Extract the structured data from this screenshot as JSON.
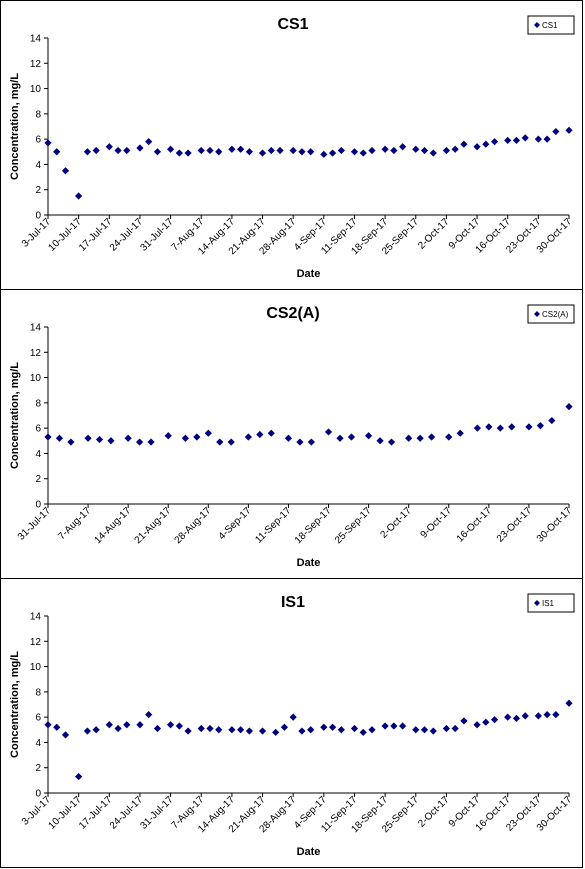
{
  "chart_data": [
    {
      "type": "scatter",
      "title": "CS1",
      "xlabel": "Date",
      "ylabel": "Concentration, mg/L",
      "ylim": [
        0,
        14
      ],
      "yticks": [
        0,
        2,
        4,
        6,
        8,
        10,
        12,
        14
      ],
      "xlim": [
        "2017-07-03",
        "2017-10-30"
      ],
      "xtick_labels": [
        "3-Jul-17",
        "10-Jul-17",
        "17-Jul-17",
        "24-Jul-17",
        "31-Jul-17",
        "7-Aug-17",
        "14-Aug-17",
        "21-Aug-17",
        "28-Aug-17",
        "4-Sep-17",
        "11-Sep-17",
        "18-Sep-17",
        "25-Sep-17",
        "2-Oct-17",
        "9-Oct-17",
        "16-Oct-17",
        "23-Oct-17",
        "30-Oct-17"
      ],
      "legend": {
        "position": "top-right"
      },
      "grid": false,
      "color": "#000080",
      "series": [
        {
          "name": "CS1",
          "x": [
            "2017-07-03",
            "2017-07-05",
            "2017-07-07",
            "2017-07-10",
            "2017-07-12",
            "2017-07-14",
            "2017-07-17",
            "2017-07-19",
            "2017-07-21",
            "2017-07-24",
            "2017-07-26",
            "2017-07-28",
            "2017-07-31",
            "2017-08-02",
            "2017-08-04",
            "2017-08-07",
            "2017-08-09",
            "2017-08-11",
            "2017-08-14",
            "2017-08-16",
            "2017-08-18",
            "2017-08-21",
            "2017-08-23",
            "2017-08-25",
            "2017-08-28",
            "2017-08-30",
            "2017-09-01",
            "2017-09-04",
            "2017-09-06",
            "2017-09-08",
            "2017-09-11",
            "2017-09-13",
            "2017-09-15",
            "2017-09-18",
            "2017-09-20",
            "2017-09-22",
            "2017-09-25",
            "2017-09-27",
            "2017-09-29",
            "2017-10-02",
            "2017-10-04",
            "2017-10-06",
            "2017-10-09",
            "2017-10-11",
            "2017-10-13",
            "2017-10-16",
            "2017-10-18",
            "2017-10-20",
            "2017-10-23",
            "2017-10-25",
            "2017-10-27",
            "2017-10-30"
          ],
          "y": [
            5.7,
            5.0,
            3.5,
            1.5,
            5.0,
            5.1,
            5.4,
            5.1,
            5.1,
            5.3,
            5.8,
            5.0,
            5.2,
            4.9,
            4.9,
            5.1,
            5.1,
            5.0,
            5.2,
            5.2,
            5.0,
            4.9,
            5.1,
            5.1,
            5.1,
            5.0,
            5.0,
            4.8,
            4.9,
            5.1,
            5.0,
            4.9,
            5.1,
            5.2,
            5.1,
            5.4,
            5.2,
            5.1,
            4.9,
            5.1,
            5.2,
            5.6,
            5.4,
            5.6,
            5.8,
            5.9,
            5.9,
            6.1,
            6.0,
            6.0,
            6.6,
            6.7
          ]
        }
      ]
    },
    {
      "type": "scatter",
      "title": "CS2(A)",
      "xlabel": "Date",
      "ylabel": "Concentration, mg/L",
      "ylim": [
        0,
        14
      ],
      "yticks": [
        0,
        2,
        4,
        6,
        8,
        10,
        12,
        14
      ],
      "xlim": [
        "2017-07-31",
        "2017-10-30"
      ],
      "xtick_labels": [
        "31-Jul-17",
        "7-Aug-17",
        "14-Aug-17",
        "21-Aug-17",
        "28-Aug-17",
        "4-Sep-17",
        "11-Sep-17",
        "18-Sep-17",
        "25-Sep-17",
        "2-Oct-17",
        "9-Oct-17",
        "16-Oct-17",
        "23-Oct-17",
        "30-Oct-17"
      ],
      "legend": {
        "position": "top-right"
      },
      "grid": false,
      "color": "#000080",
      "series": [
        {
          "name": "CS2(A)",
          "x": [
            "2017-07-31",
            "2017-08-02",
            "2017-08-04",
            "2017-08-07",
            "2017-08-09",
            "2017-08-11",
            "2017-08-14",
            "2017-08-16",
            "2017-08-18",
            "2017-08-21",
            "2017-08-24",
            "2017-08-26",
            "2017-08-28",
            "2017-08-30",
            "2017-09-01",
            "2017-09-04",
            "2017-09-06",
            "2017-09-08",
            "2017-09-11",
            "2017-09-13",
            "2017-09-15",
            "2017-09-18",
            "2017-09-20",
            "2017-09-22",
            "2017-09-25",
            "2017-09-27",
            "2017-09-29",
            "2017-10-02",
            "2017-10-04",
            "2017-10-06",
            "2017-10-09",
            "2017-10-11",
            "2017-10-14",
            "2017-10-16",
            "2017-10-18",
            "2017-10-20",
            "2017-10-23",
            "2017-10-25",
            "2017-10-27",
            "2017-10-30"
          ],
          "y": [
            5.3,
            5.2,
            4.9,
            5.2,
            5.1,
            5.0,
            5.2,
            4.9,
            4.9,
            5.4,
            5.2,
            5.3,
            5.6,
            4.9,
            4.9,
            5.3,
            5.5,
            5.6,
            5.2,
            4.9,
            4.9,
            5.7,
            5.2,
            5.3,
            5.4,
            5.0,
            4.9,
            5.2,
            5.2,
            5.3,
            5.3,
            5.6,
            6.0,
            6.1,
            6.0,
            6.1,
            6.1,
            6.2,
            6.6,
            7.7
          ]
        }
      ]
    },
    {
      "type": "scatter",
      "title": "IS1",
      "xlabel": "Date",
      "ylabel": "Concentration, mg/L",
      "ylim": [
        0,
        14
      ],
      "yticks": [
        0,
        2,
        4,
        6,
        8,
        10,
        12,
        14
      ],
      "xlim": [
        "2017-07-03",
        "2017-10-30"
      ],
      "xtick_labels": [
        "3-Jul-17",
        "10-Jul-17",
        "17-Jul-17",
        "24-Jul-17",
        "31-Jul-17",
        "7-Aug-17",
        "14-Aug-17",
        "21-Aug-17",
        "28-Aug-17",
        "4-Sep-17",
        "11-Sep-17",
        "18-Sep-17",
        "25-Sep-17",
        "2-Oct-17",
        "9-Oct-17",
        "16-Oct-17",
        "23-Oct-17",
        "30-Oct-17"
      ],
      "legend": {
        "position": "top-right"
      },
      "grid": false,
      "color": "#000080",
      "series": [
        {
          "name": "IS1",
          "x": [
            "2017-07-03",
            "2017-07-05",
            "2017-07-07",
            "2017-07-10",
            "2017-07-12",
            "2017-07-14",
            "2017-07-17",
            "2017-07-19",
            "2017-07-21",
            "2017-07-24",
            "2017-07-26",
            "2017-07-28",
            "2017-07-31",
            "2017-08-02",
            "2017-08-04",
            "2017-08-07",
            "2017-08-09",
            "2017-08-11",
            "2017-08-14",
            "2017-08-16",
            "2017-08-18",
            "2017-08-21",
            "2017-08-24",
            "2017-08-26",
            "2017-08-28",
            "2017-08-30",
            "2017-09-01",
            "2017-09-04",
            "2017-09-06",
            "2017-09-08",
            "2017-09-11",
            "2017-09-13",
            "2017-09-15",
            "2017-09-18",
            "2017-09-20",
            "2017-09-22",
            "2017-09-25",
            "2017-09-27",
            "2017-09-29",
            "2017-10-02",
            "2017-10-04",
            "2017-10-06",
            "2017-10-09",
            "2017-10-11",
            "2017-10-13",
            "2017-10-16",
            "2017-10-18",
            "2017-10-20",
            "2017-10-23",
            "2017-10-25",
            "2017-10-27",
            "2017-10-30"
          ],
          "y": [
            5.4,
            5.2,
            4.6,
            1.3,
            4.9,
            5.0,
            5.4,
            5.1,
            5.4,
            5.4,
            6.2,
            5.1,
            5.4,
            5.3,
            4.9,
            5.1,
            5.1,
            5.0,
            5.0,
            5.0,
            4.9,
            4.9,
            4.8,
            5.2,
            6.0,
            4.9,
            5.0,
            5.2,
            5.2,
            5.0,
            5.1,
            4.8,
            5.0,
            5.3,
            5.3,
            5.3,
            5.0,
            5.0,
            4.9,
            5.1,
            5.1,
            5.7,
            5.4,
            5.6,
            5.8,
            6.0,
            5.9,
            6.1,
            6.1,
            6.2,
            6.2,
            7.1
          ]
        }
      ]
    }
  ]
}
